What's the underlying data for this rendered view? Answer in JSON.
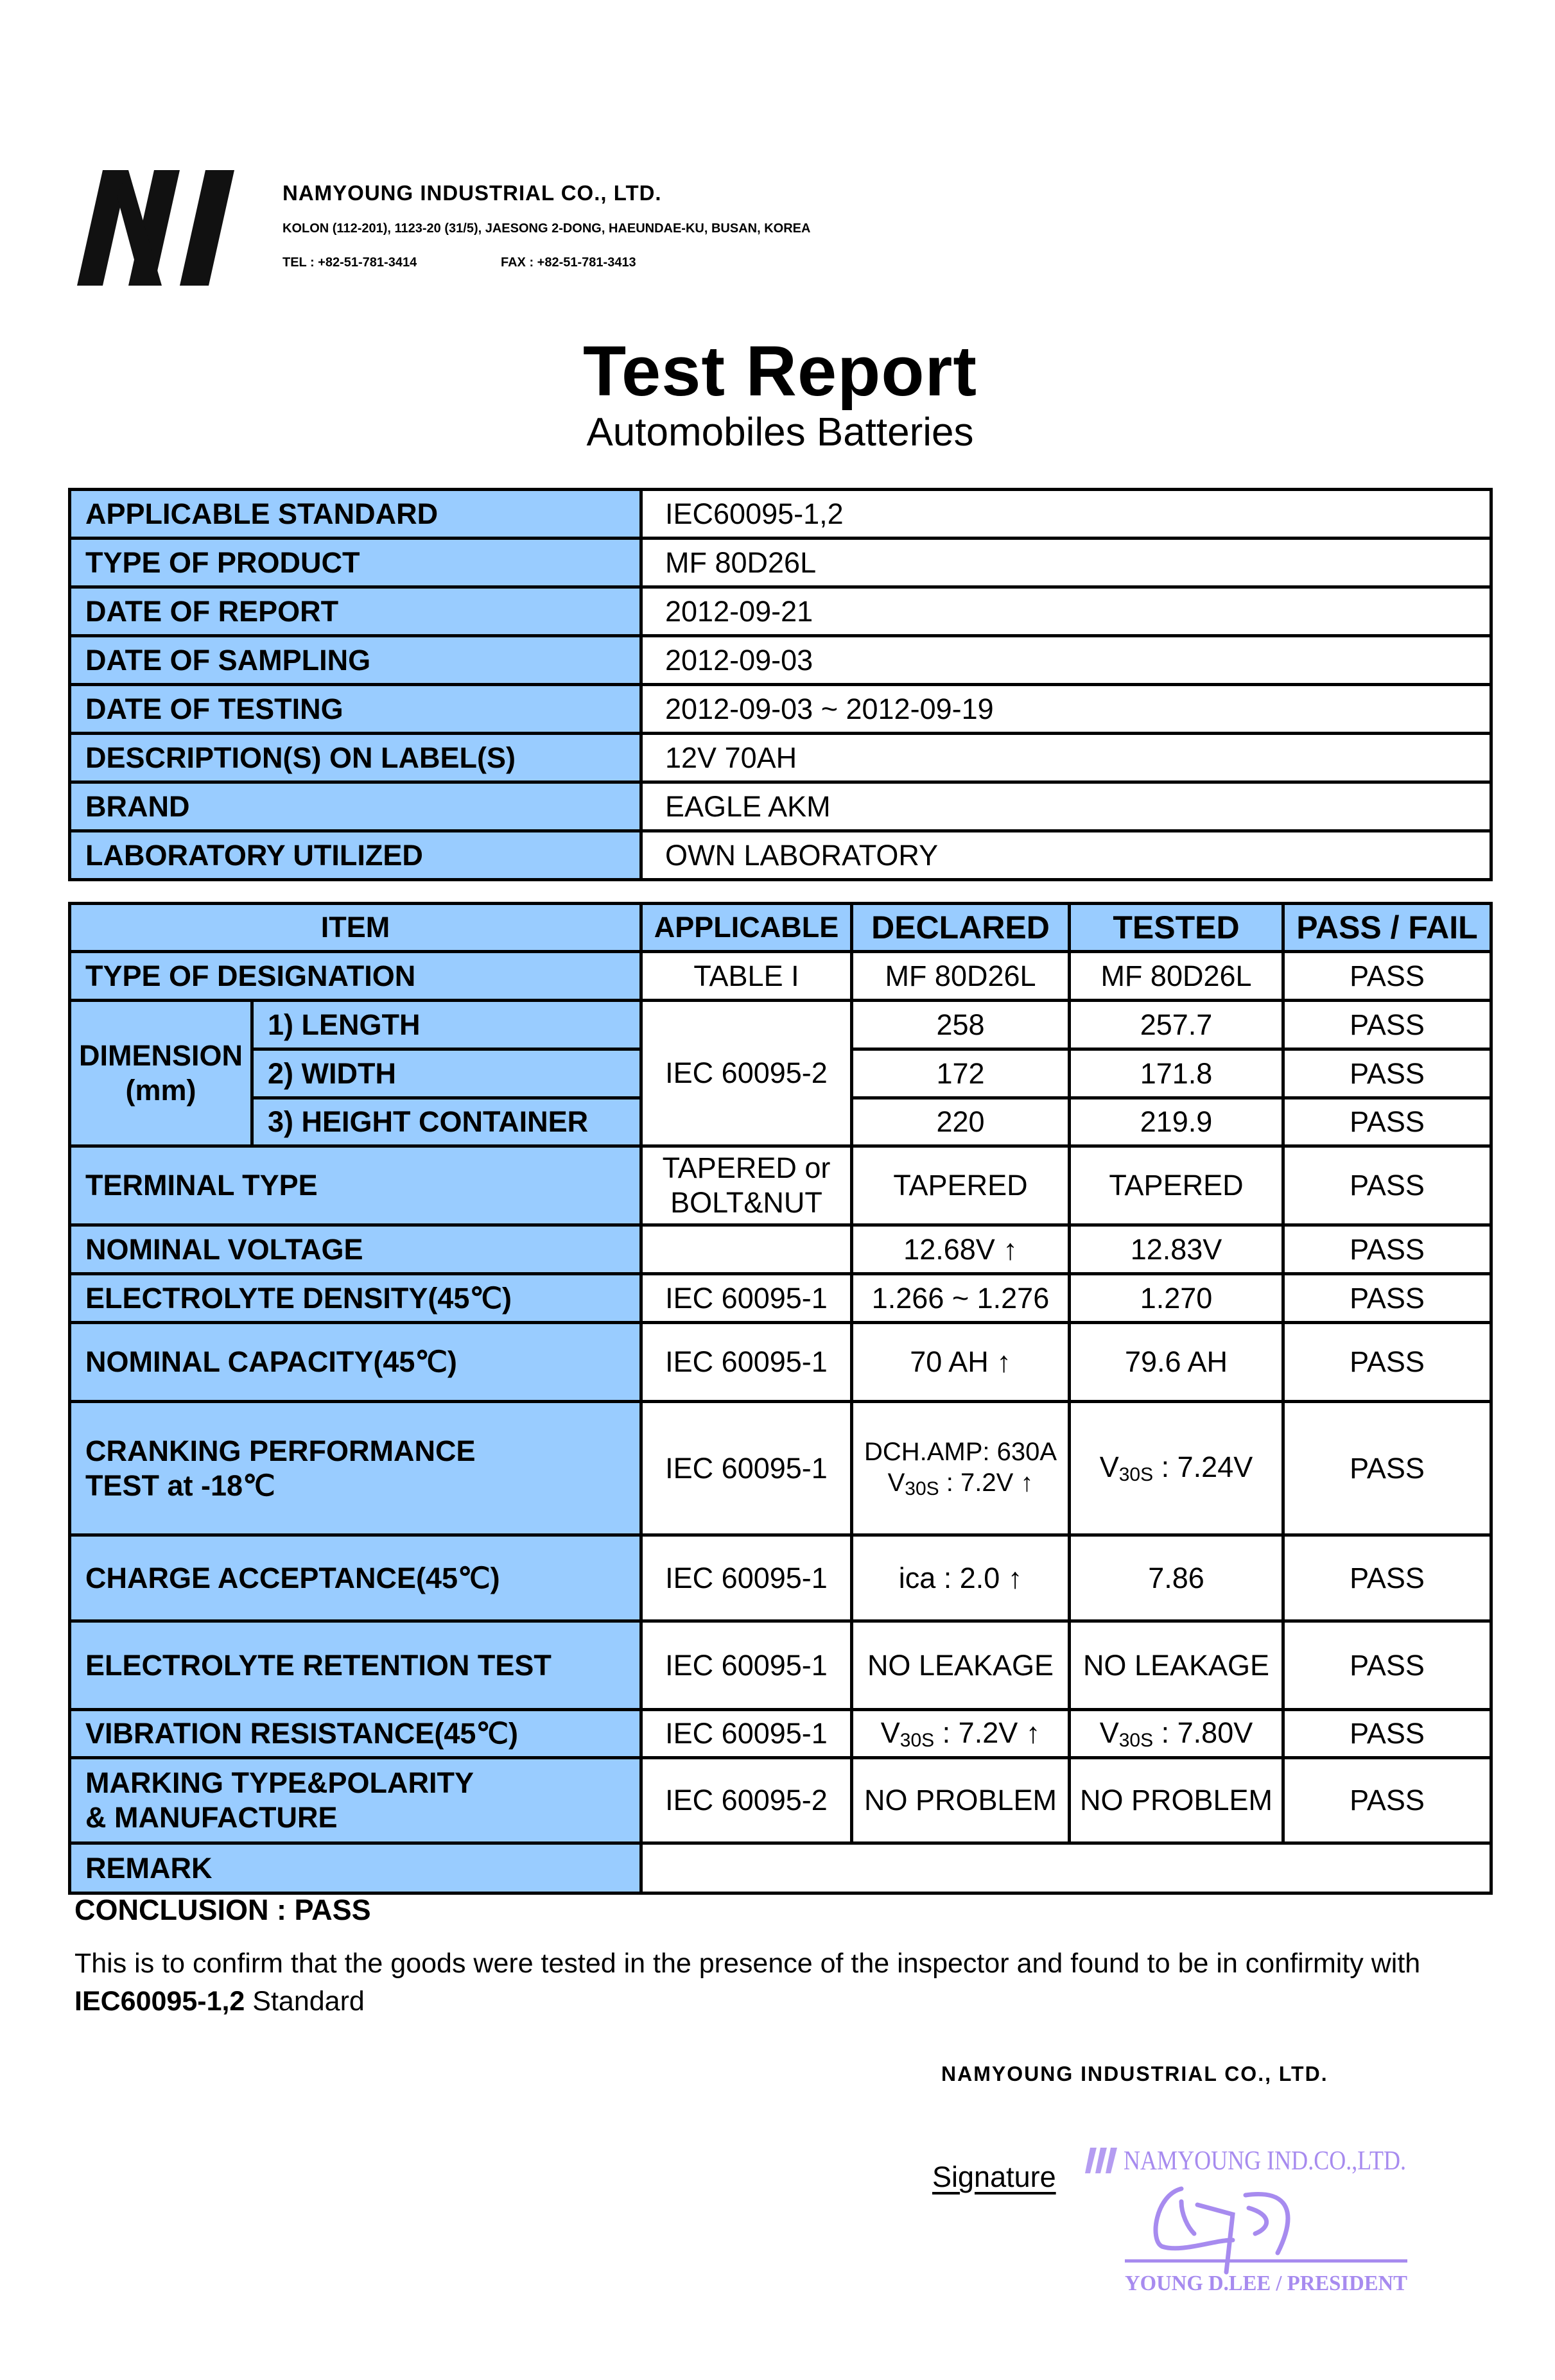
{
  "company": {
    "name": "NAMYOUNG INDUSTRIAL CO., LTD.",
    "address": "KOLON  (112-201), 1123-20 (31/5), JAESONG 2-DONG, HAEUNDAE-KU, BUSAN, KOREA",
    "tel": "TEL : +82-51-781-3414",
    "fax": "FAX : +82-51-781-3413",
    "logo": "NY"
  },
  "title": "Test Report",
  "subtitle": "Automobiles Batteries",
  "colors": {
    "label_bg": "#99ccff",
    "stamp": "#a78bef"
  },
  "info": [
    {
      "label": "APPLICABLE STANDARD",
      "value": "IEC60095-1,2"
    },
    {
      "label": "TYPE OF PRODUCT",
      "value": "MF 80D26L"
    },
    {
      "label": "DATE OF REPORT",
      "value": "2012-09-21"
    },
    {
      "label": "DATE OF SAMPLING",
      "value": "2012-09-03"
    },
    {
      "label": "DATE OF TESTING",
      "value": "2012-09-03 ~ 2012-09-19"
    },
    {
      "label": "DESCRIPTION(S) ON LABEL(S)",
      "value": "12V 70AH"
    },
    {
      "label": "BRAND",
      "value": "EAGLE AKM"
    },
    {
      "label": "LABORATORY UTILIZED",
      "value": "OWN LABORATORY"
    }
  ],
  "results": {
    "headers": {
      "item": "ITEM",
      "applicable": "APPLICABLE",
      "declared": "DECLARED",
      "tested": "TESTED",
      "result": "PASS / FAIL"
    },
    "designation": {
      "item": "TYPE OF DESIGNATION",
      "applicable": "TABLE I",
      "declared": "MF 80D26L",
      "tested": "MF 80D26L",
      "result": "PASS"
    },
    "dimension": {
      "group": "DIMENSION",
      "unit": "(mm)",
      "applicable": "IEC 60095-2",
      "rows": [
        {
          "item": "1) LENGTH",
          "declared": "258",
          "tested": "257.7",
          "result": "PASS"
        },
        {
          "item": "2) WIDTH",
          "declared": "172",
          "tested": "171.8",
          "result": "PASS"
        },
        {
          "item": "3) HEIGHT CONTAINER",
          "declared": "220",
          "tested": "219.9",
          "result": "PASS"
        }
      ]
    },
    "terminal": {
      "item": "TERMINAL TYPE",
      "applicable_1": "TAPERED or",
      "applicable_2": "BOLT&NUT",
      "declared": "TAPERED",
      "tested": "TAPERED",
      "result": "PASS"
    },
    "voltage": {
      "item": "NOMINAL VOLTAGE",
      "applicable": "",
      "declared": "12.68V ↑",
      "tested": "12.83V",
      "result": "PASS"
    },
    "density": {
      "item": "ELECTROLYTE DENSITY(45℃)",
      "applicable": "IEC 60095-1",
      "declared": "1.266 ~ 1.276",
      "tested": "1.270",
      "result": "PASS"
    },
    "capacity": {
      "item": "NOMINAL CAPACITY(45℃)",
      "applicable": "IEC 60095-1",
      "declared": "70 AH ↑",
      "tested": "79.6 AH",
      "result": "PASS"
    },
    "cranking": {
      "item_1": "CRANKING PERFORMANCE",
      "item_2": "TEST at -18℃",
      "applicable": "IEC 60095-1",
      "declared_1": "DCH.AMP: 630A",
      "declared_v": "V",
      "declared_sub": "30S",
      "declared_rest": " : 7.2V ↑",
      "tested_v": "V",
      "tested_sub": "30S",
      "tested_rest": " : 7.24V",
      "result": "PASS"
    },
    "charge": {
      "item": "CHARGE ACCEPTANCE(45℃)",
      "applicable": "IEC 60095-1",
      "declared": "ica : 2.0 ↑",
      "tested": "7.86",
      "result": "PASS"
    },
    "retention": {
      "item": "ELECTROLYTE RETENTION TEST",
      "applicable": "IEC 60095-1",
      "declared": "NO LEAKAGE",
      "tested": "NO LEAKAGE",
      "result": "PASS"
    },
    "vibration": {
      "item": "VIBRATION RESISTANCE(45℃)",
      "applicable": "IEC 60095-1",
      "declared_v": "V",
      "declared_sub": "30S",
      "declared_rest": " : 7.2V ↑",
      "tested_v": "V",
      "tested_sub": "30S",
      "tested_rest": " : 7.80V",
      "result": "PASS"
    },
    "marking": {
      "item_1": "MARKING TYPE&POLARITY",
      "item_2": "& MANUFACTURE",
      "applicable": "IEC 60095-2",
      "declared": "NO PROBLEM",
      "tested": "NO PROBLEM",
      "result": "PASS"
    },
    "remark": {
      "item": "REMARK",
      "value": ""
    }
  },
  "conclusion": "CONCLUSION : PASS",
  "statement": {
    "text": "This is to confirm that the goods were tested in the presence of the inspector and found to be in confirmity with ",
    "standard": "IEC60095-1,2",
    "suffix": " Standard"
  },
  "footer": {
    "company": "NAMYOUNG INDUSTRIAL CO., LTD.",
    "signature_label": "Signature",
    "stamp_company": "NAMYOUNG IND.CO.,LTD.",
    "stamp_name": "YOUNG D.LEE / PRESIDENT"
  }
}
